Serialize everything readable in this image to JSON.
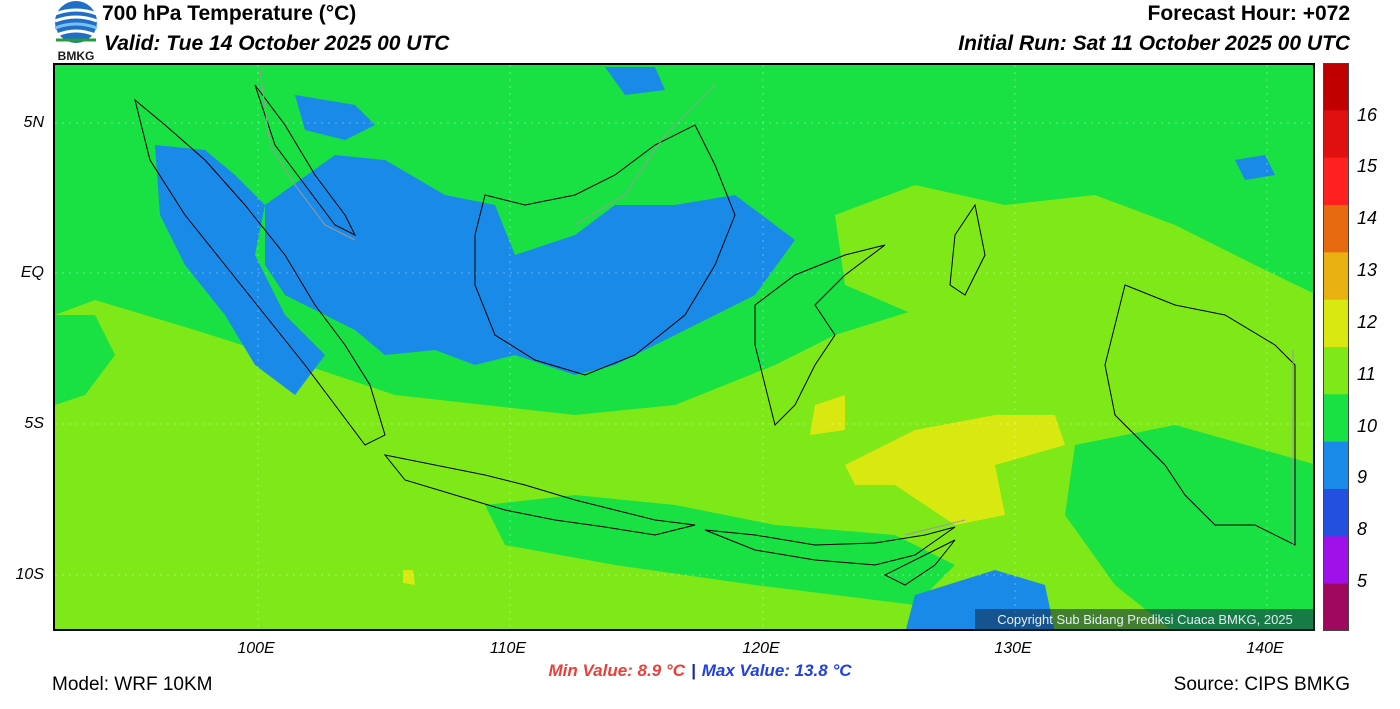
{
  "header": {
    "title": "700 hPa Temperature (°C)",
    "valid": "Valid: Tue 14 October 2025 00 UTC",
    "forecast_hour": "Forecast Hour: +072",
    "initial_run": "Initial Run: Sat 11 October 2025 00 UTC",
    "logo_text": "BMKG"
  },
  "map": {
    "lat_labels": [
      "5N",
      "EQ",
      "5S",
      "10S"
    ],
    "lon_labels": [
      "100E",
      "110E",
      "120E",
      "130E",
      "140E"
    ],
    "lat_range": [
      -12,
      7
    ],
    "lon_range": [
      92,
      142
    ]
  },
  "colorbar": {
    "labels": [
      "16",
      "15",
      "14",
      "13",
      "12",
      "11",
      "10",
      "9",
      "8",
      "5"
    ],
    "colors": [
      "#c00000",
      "#e01010",
      "#ff2020",
      "#e86a10",
      "#e8b010",
      "#d8e810",
      "#7ee818",
      "#19e043",
      "#1a8ae8",
      "#2450e0",
      "#a010e8",
      "#a00860"
    ]
  },
  "copyright": "Copyright Sub Bidang Prediksi Cuaca BMKG, 2025",
  "stats": {
    "min": "Min Value: 8.9 °C",
    "separator": "|",
    "max": "Max Value: 13.8 °C"
  },
  "footer": {
    "model": "Model: WRF 10KM",
    "source": "Source: CIPS BMKG"
  }
}
